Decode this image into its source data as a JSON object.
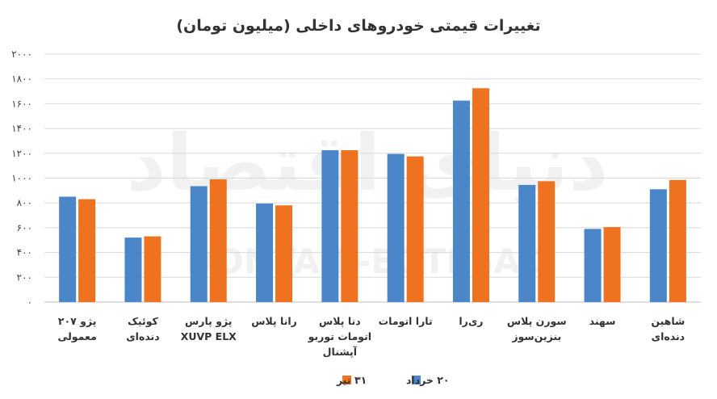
{
  "chart_data": {
    "type": "bar",
    "title": "تغییرات قیمتی خودروهای داخلی (میلیون تومان)",
    "xlabel": "",
    "ylabel": "",
    "ylim": [
      0,
      2000
    ],
    "yticks": [
      0,
      200,
      400,
      600,
      800,
      1000,
      1200,
      1400,
      1600,
      1800,
      2000
    ],
    "ytick_labels": [
      "۰",
      "۲۰۰",
      "۴۰۰",
      "۶۰۰",
      "۸۰۰",
      "۱۰۰۰",
      "۱۲۰۰",
      "۱۴۰۰",
      "۱۶۰۰",
      "۱۸۰۰",
      "۲۰۰۰"
    ],
    "grid": true,
    "legend_position": "bottom",
    "categories": [
      [
        "پژو ۲۰۷",
        "معمولی"
      ],
      [
        "کوئیک",
        "دنده‌ای"
      ],
      [
        "پژو پارس",
        "XUVP ELX"
      ],
      [
        "رانا پلاس"
      ],
      [
        "دنا پلاس",
        "اتومات توربو",
        "آپشنال"
      ],
      [
        "تارا اتومات"
      ],
      [
        "ری‌را"
      ],
      [
        "سورن پلاس",
        "بنزین‌سوز"
      ],
      [
        "سهند"
      ],
      [
        "شاهین",
        "دنده‌ای"
      ]
    ],
    "series": [
      {
        "name": "۲۰ خرداد",
        "color": "#4a86c8",
        "values": [
          850,
          520,
          935,
          795,
          1225,
          1195,
          1625,
          945,
          590,
          910
        ]
      },
      {
        "name": "۳۱ تیر",
        "color": "#ee7220",
        "values": [
          830,
          530,
          990,
          780,
          1225,
          1175,
          1725,
          975,
          605,
          985
        ]
      }
    ],
    "watermark": [
      "دنیای اقتصاد",
      "DONYA-E-EQTESAD"
    ]
  }
}
